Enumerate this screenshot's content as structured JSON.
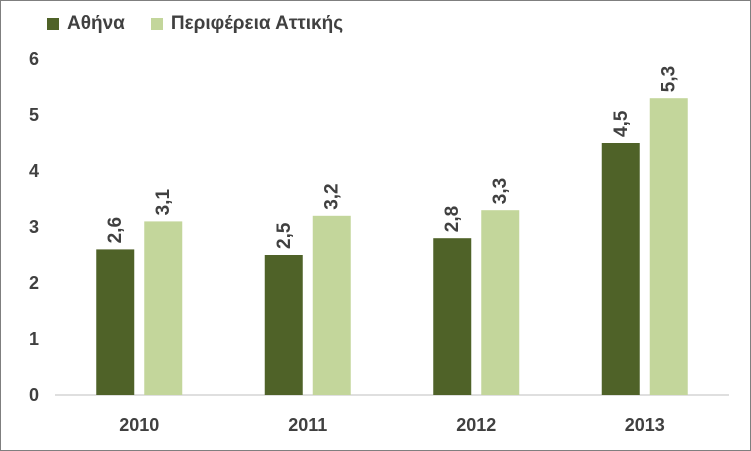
{
  "chart_data": {
    "type": "bar",
    "categories": [
      "2010",
      "2011",
      "2012",
      "2013"
    ],
    "series": [
      {
        "name": "Αθήνα",
        "values": [
          2.6,
          2.5,
          2.8,
          4.5
        ],
        "labels": [
          "2,6",
          "2,5",
          "2,8",
          "4,5"
        ],
        "color": "#4f6228"
      },
      {
        "name": "Περιφέρεια Αττικής",
        "values": [
          3.1,
          3.2,
          3.3,
          5.3
        ],
        "labels": [
          "3,1",
          "3,2",
          "3,3",
          "5,3"
        ],
        "color": "#c3d69b"
      }
    ],
    "yticks": [
      "0",
      "1",
      "2",
      "3",
      "4",
      "5",
      "6"
    ],
    "ylim": [
      0,
      6
    ],
    "grid": false,
    "legend": "top-left"
  }
}
